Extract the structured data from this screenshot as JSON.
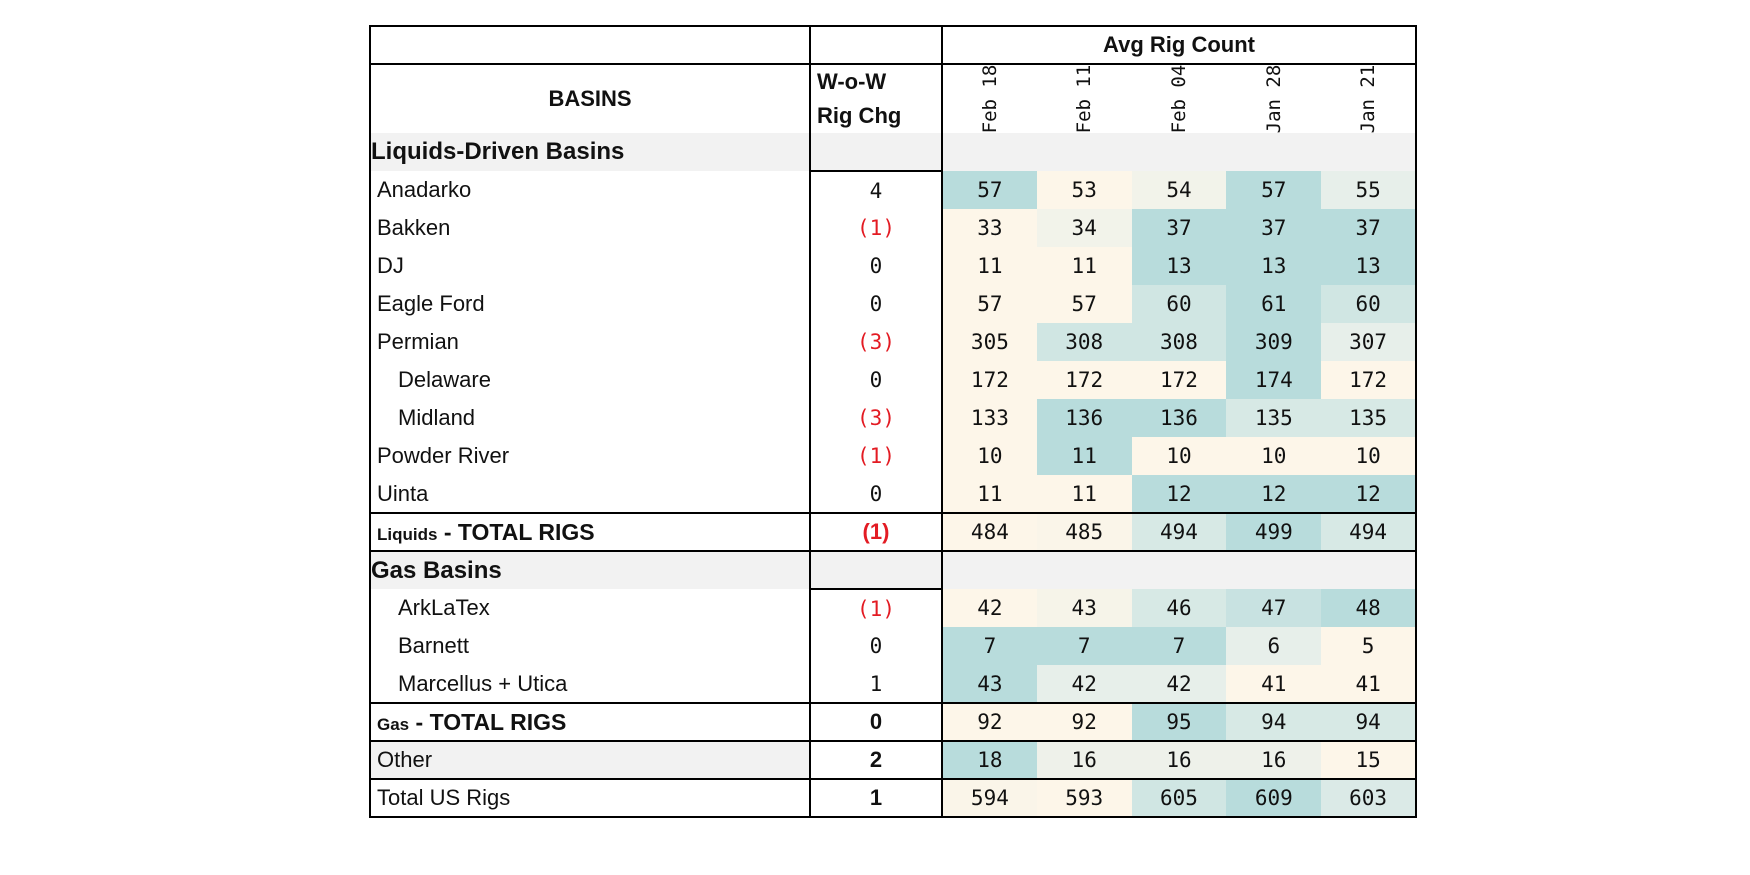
{
  "header": {
    "avg_rig_count": "Avg Rig Count",
    "basins": "BASINS",
    "wow_line1": "W-o-W",
    "wow_line2": "Rig Chg",
    "dates": [
      "Feb 18",
      "Feb 11",
      "Feb 04",
      "Jan 28",
      "Jan 21"
    ]
  },
  "colors": {
    "low": "#fdf6e9",
    "mid": "#e7efea",
    "high": "#b8dcdc",
    "negative_text": "#e31b23",
    "section_bg": "#f2f2f2"
  },
  "liquids": {
    "section_title": "Liquids-Driven Basins",
    "rows": [
      {
        "name": "Anadarko",
        "indent": false,
        "chg": "4",
        "neg": false,
        "values": [
          "57",
          "53",
          "54",
          "57",
          "55"
        ]
      },
      {
        "name": "Bakken",
        "indent": false,
        "chg": "(1)",
        "neg": true,
        "values": [
          "33",
          "34",
          "37",
          "37",
          "37"
        ]
      },
      {
        "name": "DJ",
        "indent": false,
        "chg": "0",
        "neg": false,
        "values": [
          "11",
          "11",
          "13",
          "13",
          "13"
        ]
      },
      {
        "name": "Eagle Ford",
        "indent": false,
        "chg": "0",
        "neg": false,
        "values": [
          "57",
          "57",
          "60",
          "61",
          "60"
        ]
      },
      {
        "name": "Permian",
        "indent": false,
        "chg": "(3)",
        "neg": true,
        "values": [
          "305",
          "308",
          "308",
          "309",
          "307"
        ]
      },
      {
        "name": "Delaware",
        "indent": true,
        "chg": "0",
        "neg": false,
        "values": [
          "172",
          "172",
          "172",
          "174",
          "172"
        ]
      },
      {
        "name": "Midland",
        "indent": true,
        "chg": "(3)",
        "neg": true,
        "values": [
          "133",
          "136",
          "136",
          "135",
          "135"
        ]
      },
      {
        "name": "Powder River",
        "indent": false,
        "chg": "(1)",
        "neg": true,
        "values": [
          "10",
          "11",
          "10",
          "10",
          "10"
        ]
      },
      {
        "name": "Uinta",
        "indent": false,
        "chg": "0",
        "neg": false,
        "values": [
          "11",
          "11",
          "12",
          "12",
          "12"
        ]
      }
    ],
    "total": {
      "prefix": "Liquids",
      "suffix": " - TOTAL RIGS",
      "chg": "(1)",
      "neg": true,
      "values": [
        "484",
        "485",
        "494",
        "499",
        "494"
      ]
    }
  },
  "gas": {
    "section_title": "Gas Basins",
    "rows": [
      {
        "name": "ArkLaTex",
        "indent": true,
        "chg": "(1)",
        "neg": true,
        "values": [
          "42",
          "43",
          "46",
          "47",
          "48"
        ]
      },
      {
        "name": "Barnett",
        "indent": true,
        "chg": "0",
        "neg": false,
        "values": [
          "7",
          "7",
          "7",
          "6",
          "5"
        ]
      },
      {
        "name": "Marcellus + Utica",
        "indent": true,
        "chg": "1",
        "neg": false,
        "values": [
          "43",
          "42",
          "42",
          "41",
          "41"
        ]
      }
    ],
    "total": {
      "prefix": "Gas",
      "suffix": " - TOTAL RIGS",
      "chg": "0",
      "neg": false,
      "values": [
        "92",
        "92",
        "95",
        "94",
        "94"
      ]
    }
  },
  "other": {
    "name": "Other",
    "chg": "2",
    "values": [
      "18",
      "16",
      "16",
      "16",
      "15"
    ]
  },
  "total_us": {
    "name": "Total US Rigs",
    "chg": "1",
    "values": [
      "594",
      "593",
      "605",
      "609",
      "603"
    ]
  }
}
